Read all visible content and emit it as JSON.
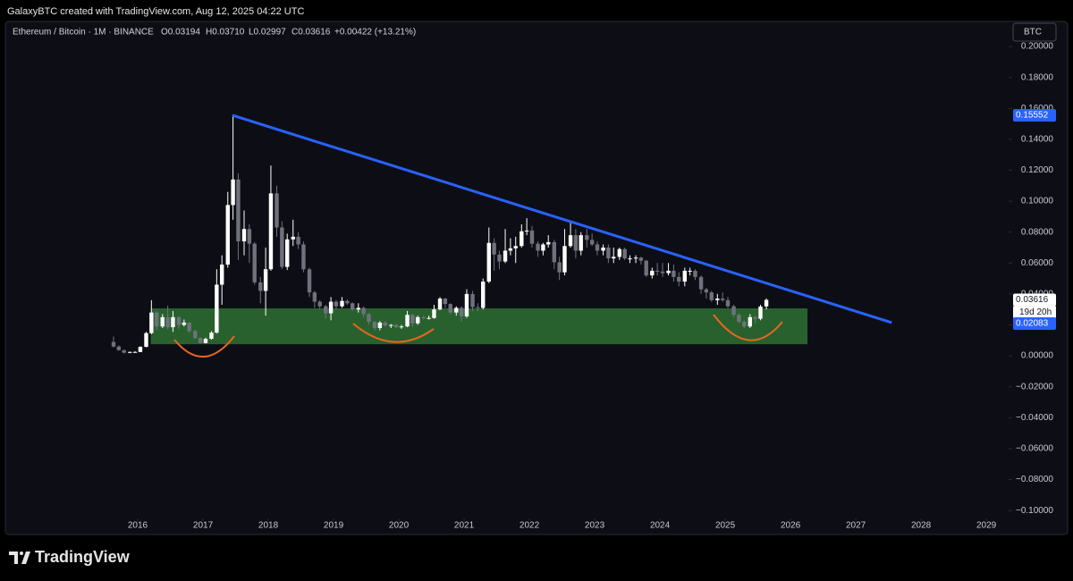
{
  "header": {
    "credit": "GalaxyBTC created with TradingView.com, Aug 12, 2025 04:22 UTC",
    "brand": "TradingView"
  },
  "chart_data": {
    "type": "candlestick",
    "legend": {
      "symbol": "Ethereum / Bitcoin · 1M · BINANCE",
      "open": "O0.03194",
      "high": "H0.03710",
      "low": "L0.02997",
      "close": "C0.03616",
      "change": "+0.00422 (+13.21%)"
    },
    "currency": "BTC",
    "up_color": "#ffffff",
    "down_color": "#6f727c",
    "x": [
      2015.63,
      2015.71,
      2015.79,
      2015.88,
      2015.96,
      2016.04,
      2016.13,
      2016.21,
      2016.29,
      2016.38,
      2016.46,
      2016.54,
      2016.63,
      2016.71,
      2016.79,
      2016.88,
      2016.96,
      2017.04,
      2017.13,
      2017.21,
      2017.29,
      2017.38,
      2017.46,
      2017.54,
      2017.63,
      2017.71,
      2017.79,
      2017.88,
      2017.96,
      2018.04,
      2018.13,
      2018.21,
      2018.29,
      2018.38,
      2018.46,
      2018.54,
      2018.63,
      2018.71,
      2018.79,
      2018.88,
      2018.96,
      2019.04,
      2019.13,
      2019.21,
      2019.29,
      2019.38,
      2019.46,
      2019.54,
      2019.63,
      2019.71,
      2019.79,
      2019.88,
      2019.96,
      2020.04,
      2020.13,
      2020.21,
      2020.29,
      2020.38,
      2020.46,
      2020.54,
      2020.63,
      2020.71,
      2020.79,
      2020.88,
      2020.96,
      2021.04,
      2021.13,
      2021.21,
      2021.29,
      2021.38,
      2021.46,
      2021.54,
      2021.63,
      2021.71,
      2021.79,
      2021.88,
      2021.96,
      2022.04,
      2022.13,
      2022.21,
      2022.29,
      2022.38,
      2022.46,
      2022.54,
      2022.63,
      2022.71,
      2022.79,
      2022.88,
      2022.96,
      2023.04,
      2023.13,
      2023.21,
      2023.29,
      2023.38,
      2023.46,
      2023.54,
      2023.63,
      2023.71,
      2023.79,
      2023.88,
      2023.96,
      2024.04,
      2024.13,
      2024.21,
      2024.29,
      2024.38,
      2024.46,
      2024.54,
      2024.63,
      2024.71,
      2024.79,
      2024.88,
      2024.96,
      2025.04,
      2025.13,
      2025.21,
      2025.29,
      2025.38,
      2025.46,
      2025.54,
      2025.63
    ],
    "ohlc": [
      [
        0.009,
        0.0125,
        0.0055,
        0.006
      ],
      [
        0.006,
        0.0068,
        0.0033,
        0.0037
      ],
      [
        0.0037,
        0.004,
        0.0016,
        0.002
      ],
      [
        0.002,
        0.0028,
        0.0017,
        0.0025
      ],
      [
        0.0025,
        0.003,
        0.0021,
        0.0025
      ],
      [
        0.0025,
        0.0062,
        0.0024,
        0.0058
      ],
      [
        0.0058,
        0.0155,
        0.0056,
        0.0147
      ],
      [
        0.0147,
        0.036,
        0.014,
        0.028
      ],
      [
        0.028,
        0.029,
        0.0165,
        0.019
      ],
      [
        0.019,
        0.027,
        0.018,
        0.025
      ],
      [
        0.025,
        0.0325,
        0.017,
        0.0185
      ],
      [
        0.0185,
        0.029,
        0.0155,
        0.025
      ],
      [
        0.025,
        0.0255,
        0.0175,
        0.02
      ],
      [
        0.02,
        0.0235,
        0.019,
        0.0215
      ],
      [
        0.0215,
        0.0218,
        0.015,
        0.016
      ],
      [
        0.016,
        0.017,
        0.011,
        0.0115
      ],
      [
        0.0115,
        0.012,
        0.008,
        0.0083
      ],
      [
        0.0083,
        0.0118,
        0.008,
        0.011
      ],
      [
        0.011,
        0.016,
        0.0105,
        0.015
      ],
      [
        0.015,
        0.056,
        0.0145,
        0.046
      ],
      [
        0.046,
        0.065,
        0.033,
        0.059
      ],
      [
        0.059,
        0.106,
        0.057,
        0.0975
      ],
      [
        0.0975,
        0.1555,
        0.088,
        0.114
      ],
      [
        0.114,
        0.118,
        0.062,
        0.074
      ],
      [
        0.074,
        0.094,
        0.065,
        0.082
      ],
      [
        0.082,
        0.085,
        0.06,
        0.0725
      ],
      [
        0.0725,
        0.0735,
        0.046,
        0.0475
      ],
      [
        0.0475,
        0.051,
        0.034,
        0.042
      ],
      [
        0.042,
        0.07,
        0.026,
        0.056
      ],
      [
        0.056,
        0.123,
        0.055,
        0.105
      ],
      [
        0.105,
        0.11,
        0.077,
        0.083
      ],
      [
        0.083,
        0.087,
        0.056,
        0.0575
      ],
      [
        0.0575,
        0.079,
        0.0555,
        0.0753
      ],
      [
        0.0753,
        0.088,
        0.071,
        0.077
      ],
      [
        0.077,
        0.08,
        0.069,
        0.072
      ],
      [
        0.072,
        0.074,
        0.054,
        0.056
      ],
      [
        0.056,
        0.057,
        0.038,
        0.041
      ],
      [
        0.041,
        0.042,
        0.031,
        0.035
      ],
      [
        0.035,
        0.036,
        0.03,
        0.032
      ],
      [
        0.032,
        0.033,
        0.024,
        0.0275
      ],
      [
        0.0275,
        0.038,
        0.023,
        0.035
      ],
      [
        0.035,
        0.036,
        0.03,
        0.032
      ],
      [
        0.032,
        0.038,
        0.031,
        0.0355
      ],
      [
        0.0355,
        0.0365,
        0.033,
        0.034
      ],
      [
        0.034,
        0.0345,
        0.029,
        0.03
      ],
      [
        0.03,
        0.034,
        0.028,
        0.031
      ],
      [
        0.031,
        0.032,
        0.025,
        0.027
      ],
      [
        0.027,
        0.0275,
        0.02,
        0.022
      ],
      [
        0.022,
        0.0225,
        0.0165,
        0.018
      ],
      [
        0.018,
        0.0225,
        0.0165,
        0.0215
      ],
      [
        0.0215,
        0.0225,
        0.019,
        0.0197
      ],
      [
        0.0197,
        0.0205,
        0.018,
        0.02
      ],
      [
        0.02,
        0.0205,
        0.018,
        0.0185
      ],
      [
        0.0185,
        0.02,
        0.0175,
        0.019
      ],
      [
        0.019,
        0.029,
        0.0185,
        0.0265
      ],
      [
        0.0265,
        0.027,
        0.019,
        0.021
      ],
      [
        0.021,
        0.026,
        0.02,
        0.025
      ],
      [
        0.025,
        0.026,
        0.0235,
        0.0245
      ],
      [
        0.0245,
        0.026,
        0.0235,
        0.0245
      ],
      [
        0.0245,
        0.033,
        0.024,
        0.03
      ],
      [
        0.03,
        0.038,
        0.0295,
        0.037
      ],
      [
        0.037,
        0.0375,
        0.031,
        0.0335
      ],
      [
        0.0335,
        0.034,
        0.027,
        0.028
      ],
      [
        0.028,
        0.032,
        0.026,
        0.031
      ],
      [
        0.031,
        0.032,
        0.022,
        0.0255
      ],
      [
        0.0255,
        0.043,
        0.0245,
        0.04
      ],
      [
        0.04,
        0.042,
        0.029,
        0.0315
      ],
      [
        0.0315,
        0.034,
        0.029,
        0.031
      ],
      [
        0.031,
        0.05,
        0.03,
        0.048
      ],
      [
        0.048,
        0.083,
        0.047,
        0.073
      ],
      [
        0.073,
        0.076,
        0.055,
        0.0655
      ],
      [
        0.0655,
        0.068,
        0.056,
        0.061
      ],
      [
        0.061,
        0.082,
        0.06,
        0.068
      ],
      [
        0.068,
        0.076,
        0.065,
        0.0695
      ],
      [
        0.0695,
        0.077,
        0.06,
        0.071
      ],
      [
        0.071,
        0.085,
        0.07,
        0.0805
      ],
      [
        0.0805,
        0.089,
        0.078,
        0.081
      ],
      [
        0.081,
        0.084,
        0.07,
        0.0725
      ],
      [
        0.0725,
        0.074,
        0.064,
        0.068
      ],
      [
        0.068,
        0.073,
        0.065,
        0.072
      ],
      [
        0.072,
        0.078,
        0.07,
        0.0735
      ],
      [
        0.0735,
        0.075,
        0.056,
        0.0605
      ],
      [
        0.0605,
        0.064,
        0.049,
        0.054
      ],
      [
        0.054,
        0.082,
        0.052,
        0.071
      ],
      [
        0.071,
        0.087,
        0.07,
        0.078
      ],
      [
        0.078,
        0.082,
        0.063,
        0.068
      ],
      [
        0.068,
        0.08,
        0.065,
        0.078
      ],
      [
        0.078,
        0.082,
        0.07,
        0.075
      ],
      [
        0.075,
        0.079,
        0.071,
        0.072
      ],
      [
        0.072,
        0.074,
        0.065,
        0.068
      ],
      [
        0.068,
        0.072,
        0.065,
        0.07
      ],
      [
        0.07,
        0.072,
        0.06,
        0.063
      ],
      [
        0.063,
        0.07,
        0.06,
        0.064
      ],
      [
        0.064,
        0.07,
        0.062,
        0.069
      ],
      [
        0.069,
        0.07,
        0.062,
        0.063
      ],
      [
        0.063,
        0.065,
        0.06,
        0.063
      ],
      [
        0.063,
        0.065,
        0.06,
        0.0635
      ],
      [
        0.0635,
        0.064,
        0.059,
        0.0615
      ],
      [
        0.0615,
        0.062,
        0.051,
        0.052
      ],
      [
        0.052,
        0.057,
        0.05,
        0.055
      ],
      [
        0.055,
        0.06,
        0.052,
        0.0545
      ],
      [
        0.0545,
        0.06,
        0.051,
        0.0535
      ],
      [
        0.0535,
        0.06,
        0.052,
        0.055
      ],
      [
        0.055,
        0.059,
        0.048,
        0.051
      ],
      [
        0.051,
        0.054,
        0.045,
        0.048
      ],
      [
        0.048,
        0.057,
        0.045,
        0.055
      ],
      [
        0.055,
        0.057,
        0.052,
        0.055
      ],
      [
        0.055,
        0.056,
        0.049,
        0.051
      ],
      [
        0.051,
        0.052,
        0.04,
        0.043
      ],
      [
        0.043,
        0.044,
        0.037,
        0.041
      ],
      [
        0.041,
        0.042,
        0.035,
        0.036
      ],
      [
        0.036,
        0.04,
        0.033,
        0.037
      ],
      [
        0.037,
        0.041,
        0.035,
        0.036
      ],
      [
        0.036,
        0.038,
        0.031,
        0.032
      ],
      [
        0.032,
        0.033,
        0.025,
        0.0265
      ],
      [
        0.0265,
        0.0275,
        0.021,
        0.022
      ],
      [
        0.022,
        0.023,
        0.018,
        0.019
      ],
      [
        0.019,
        0.027,
        0.018,
        0.025
      ],
      [
        0.025,
        0.026,
        0.021,
        0.024
      ],
      [
        0.024,
        0.033,
        0.023,
        0.0319
      ],
      [
        0.03194,
        0.0371,
        0.02997,
        0.03616
      ]
    ],
    "xlim": [
      2014,
      2029.3
    ],
    "xticks": [
      2016,
      2017,
      2018,
      2019,
      2020,
      2021,
      2022,
      2023,
      2024,
      2025,
      2026,
      2027,
      2028,
      2029
    ],
    "ylim": [
      -0.108,
      0.2
    ],
    "yticks": [
      {
        "value": 0.2,
        "label": "0.20000"
      },
      {
        "value": 0.18,
        "label": "0.18000"
      },
      {
        "value": 0.16,
        "label": "0.16000"
      },
      {
        "value": 0.14,
        "label": "0.14000"
      },
      {
        "value": 0.12,
        "label": "0.12000"
      },
      {
        "value": 0.1,
        "label": "0.10000"
      },
      {
        "value": 0.08,
        "label": "0.08000"
      },
      {
        "value": 0.06,
        "label": "0.06000"
      },
      {
        "value": 0.04,
        "label": "0.04000"
      },
      {
        "value": 0.02,
        "label": "0.02000"
      },
      {
        "value": 0,
        "label": "0.00000"
      },
      {
        "value": -0.02,
        "label": "−0.02000"
      },
      {
        "value": -0.04,
        "label": "−0.04000"
      },
      {
        "value": -0.06,
        "label": "−0.06000"
      },
      {
        "value": -0.08,
        "label": "−0.08000"
      },
      {
        "value": -0.1,
        "label": "−0.10000"
      }
    ],
    "trendline": {
      "x": [
        2017.45,
        2027.55
      ],
      "y": [
        0.15552,
        0.0215
      ],
      "color": "#2962ff"
    },
    "zone": {
      "x": [
        2016.2,
        2026.26
      ],
      "y": [
        0.0075,
        0.0307
      ],
      "color": "#2e7032"
    },
    "price_labels": {
      "trend": 0.15552,
      "last": 0.03616,
      "countdown": "19d 20h",
      "level": 0.02083
    }
  }
}
